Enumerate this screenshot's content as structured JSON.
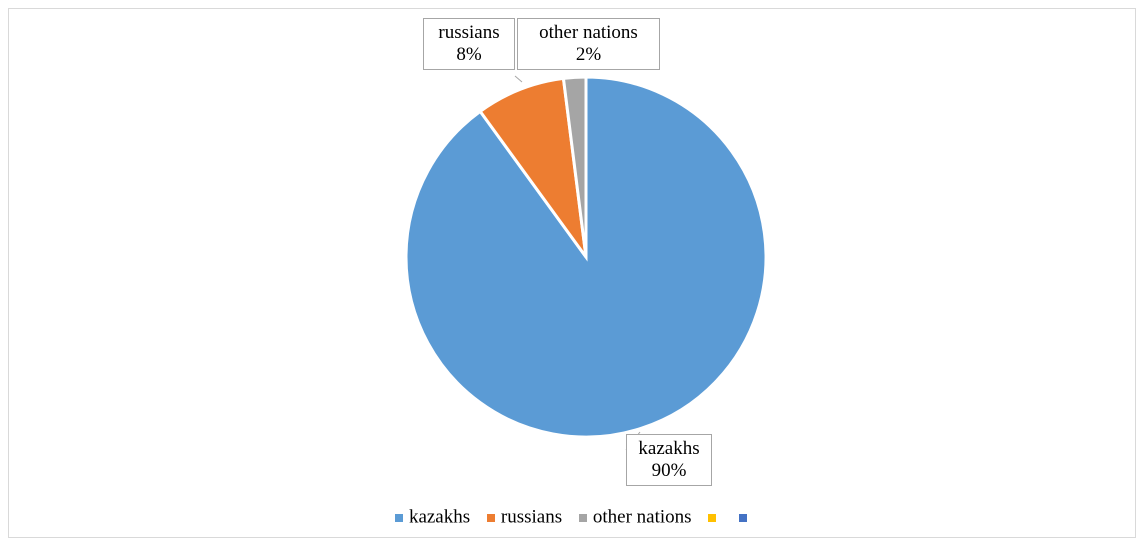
{
  "chart_data": {
    "type": "pie",
    "title": "",
    "slices": [
      {
        "name": "kazakhs",
        "value": 90,
        "label": "90%",
        "color": "#5b9bd5"
      },
      {
        "name": "russians",
        "value": 8,
        "label": "8%",
        "color": "#ed7d31"
      },
      {
        "name": "other nations",
        "value": 2,
        "label": "2%",
        "color": "#a5a5a5"
      }
    ],
    "legend": {
      "placement": "bottom",
      "entries": [
        {
          "name": "kazakhs",
          "color": "#5b9bd5"
        },
        {
          "name": "russians",
          "color": "#ed7d31"
        },
        {
          "name": "other nations",
          "color": "#a5a5a5"
        },
        {
          "name": "",
          "color": "#ffc000"
        },
        {
          "name": "",
          "color": "#4472c4"
        }
      ]
    }
  }
}
